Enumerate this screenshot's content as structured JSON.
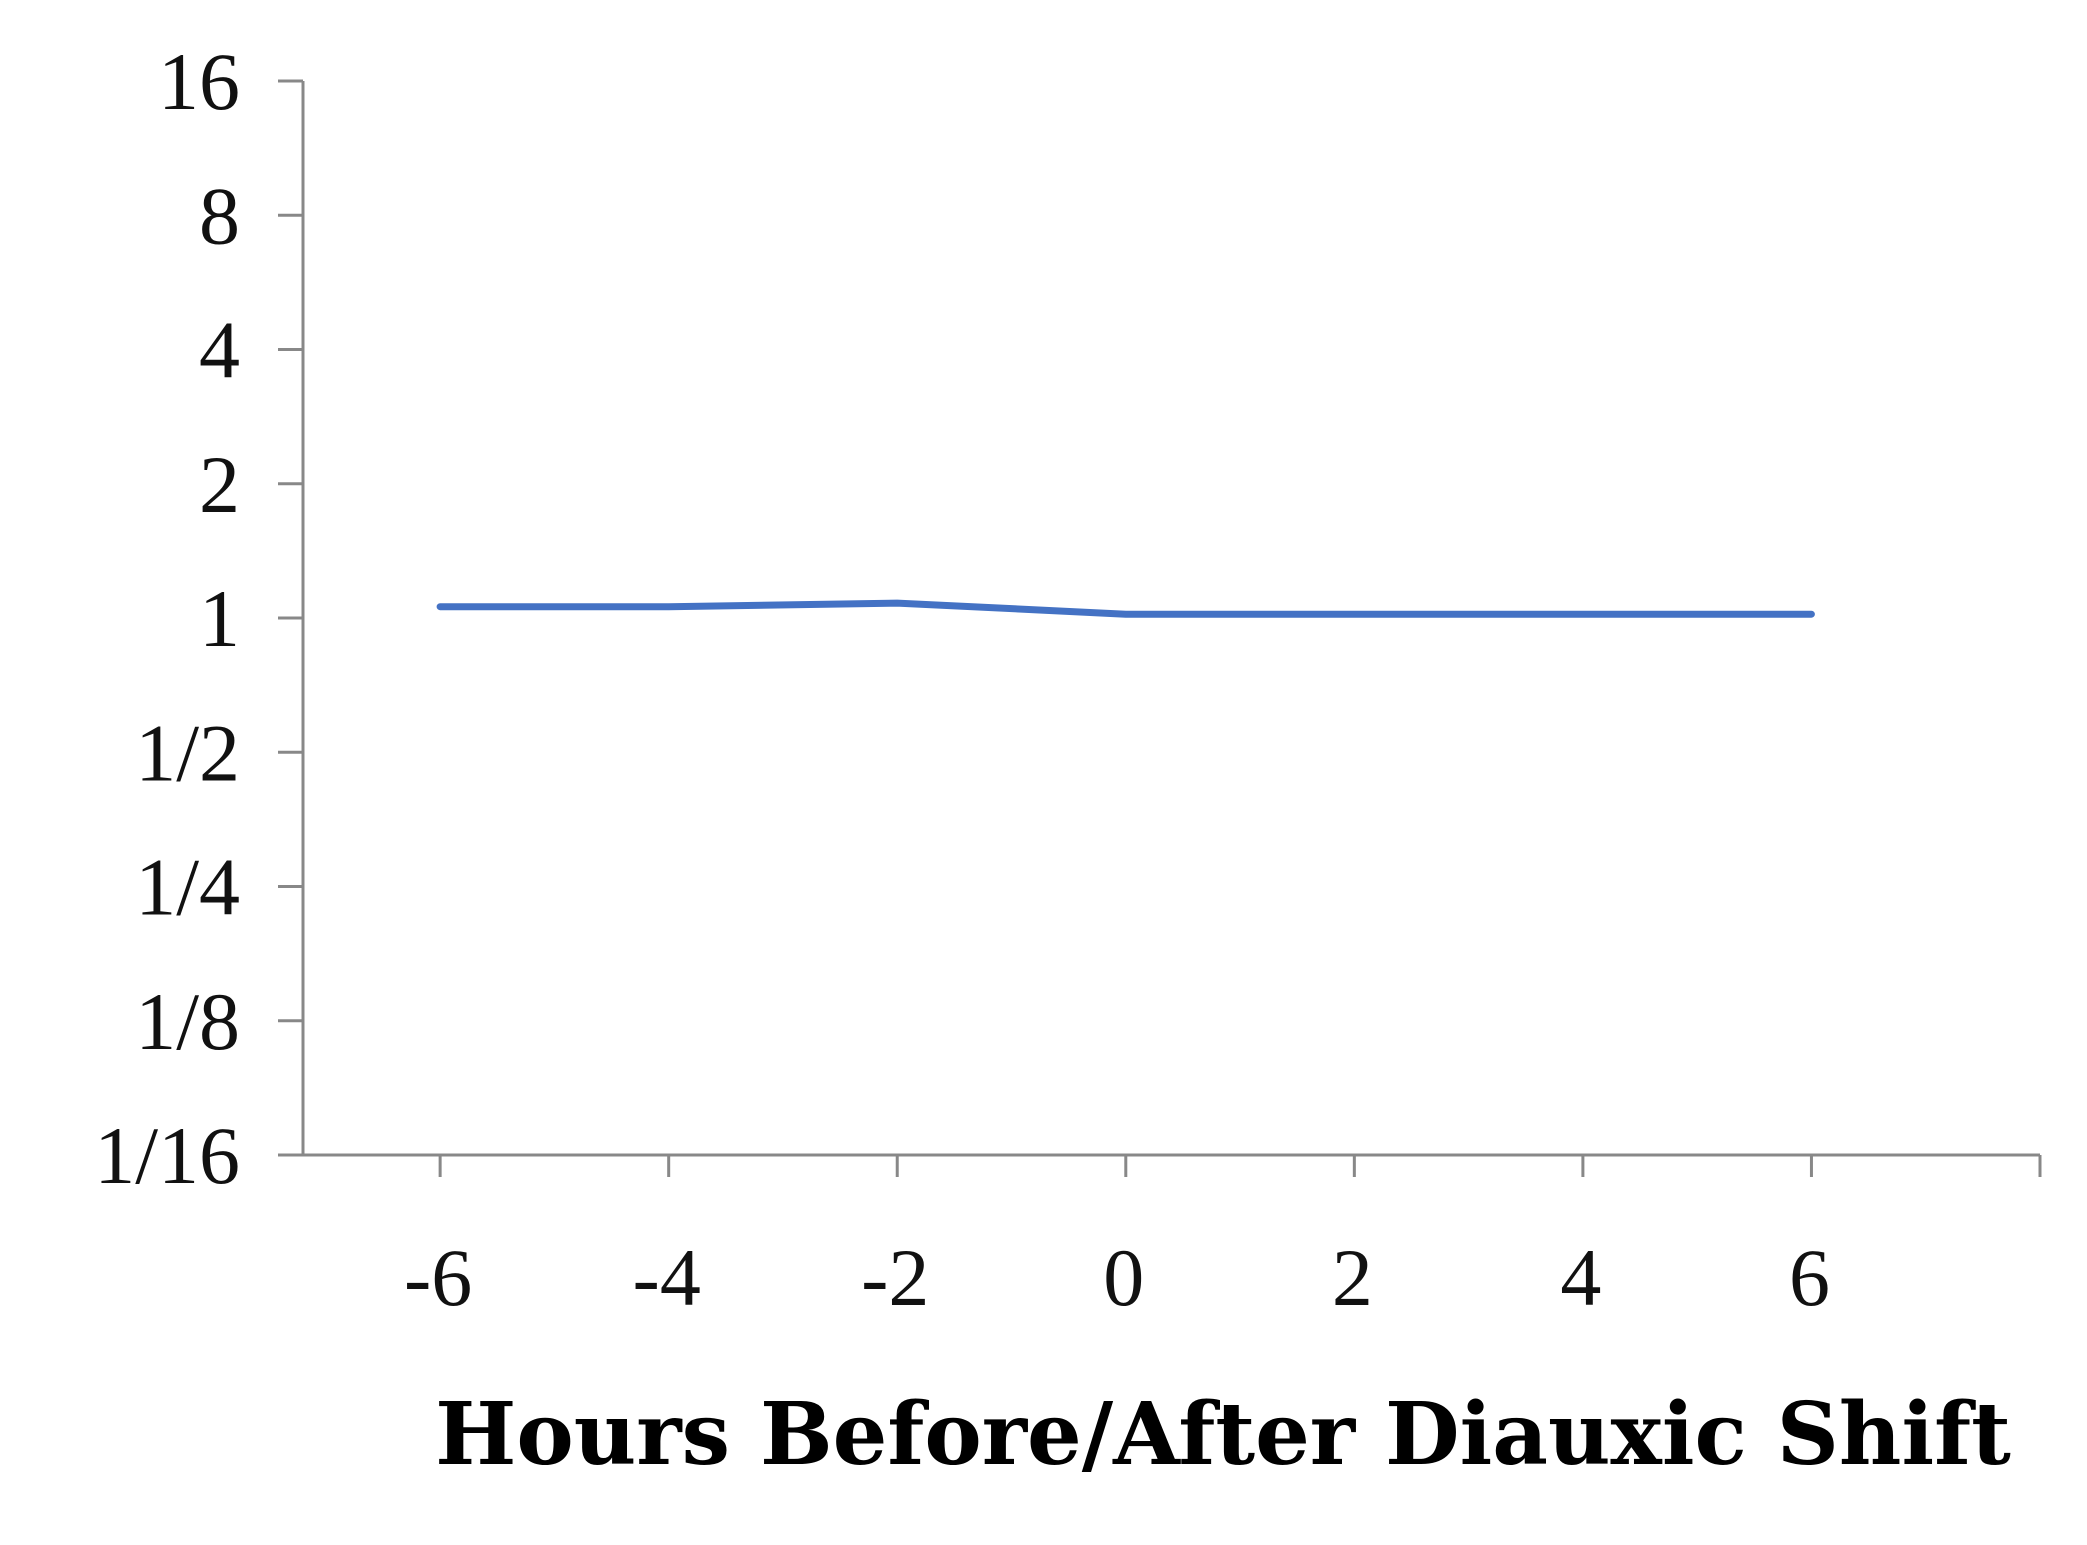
{
  "chart_data": {
    "type": "line",
    "title": "",
    "xlabel": "Hours Before/After Diauxic Shift",
    "ylabel": "",
    "y_scale": "log2",
    "x": [
      -6,
      -4,
      -2,
      0,
      2,
      4,
      6
    ],
    "series": [
      {
        "values": [
          1.06,
          1.06,
          1.08,
          1.02,
          1.02,
          1.02,
          1.02
        ]
      }
    ],
    "xlim": [
      -7.2,
      8.0
    ],
    "ylim": [
      0.0625,
      16
    ],
    "x_ticks": [
      "-6",
      "-4",
      "-2",
      "0",
      "2",
      "4",
      "6"
    ],
    "y_ticks": [
      {
        "value": 16,
        "label": "16"
      },
      {
        "value": 8,
        "label": "8"
      },
      {
        "value": 4,
        "label": "4"
      },
      {
        "value": 2,
        "label": "2"
      },
      {
        "value": 1,
        "label": "1"
      },
      {
        "value": 0.5,
        "label": "1/2"
      },
      {
        "value": 0.25,
        "label": "1/4"
      },
      {
        "value": 0.125,
        "label": "1/8"
      },
      {
        "value": 0.0625,
        "label": "1/16"
      }
    ],
    "grid": false,
    "legend": "none",
    "colors": {
      "series": "#4472c4",
      "axis": "#888888"
    }
  }
}
